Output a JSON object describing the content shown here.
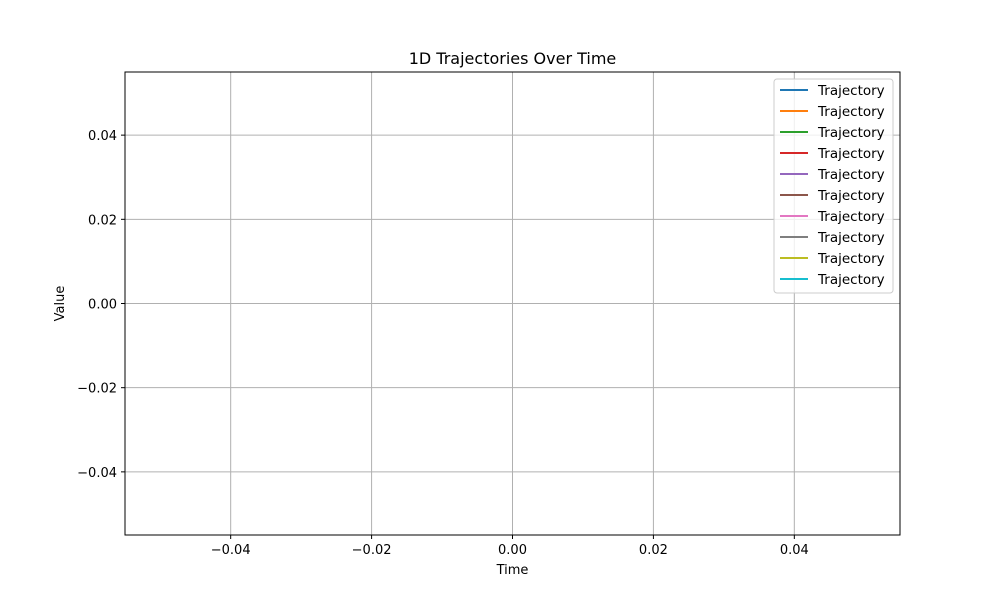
{
  "chart_data": {
    "type": "line",
    "title": "1D Trajectories Over Time",
    "xlabel": "Time",
    "ylabel": "Value",
    "xlim": [
      -0.055,
      0.055
    ],
    "ylim": [
      -0.055,
      0.055
    ],
    "x_ticks": [
      -0.04,
      -0.02,
      0.0,
      0.02,
      0.04
    ],
    "x_tick_labels": [
      "−0.04",
      "−0.02",
      "0.00",
      "0.02",
      "0.04"
    ],
    "y_ticks": [
      -0.04,
      -0.02,
      0.0,
      0.02,
      0.04
    ],
    "y_tick_labels": [
      "−0.04",
      "−0.02",
      "0.00",
      "0.02",
      "0.04"
    ],
    "grid": true,
    "legend_position": "top-right",
    "series": [
      {
        "name": "Trajectory",
        "color": "#1f77b4",
        "x": [],
        "y": []
      },
      {
        "name": "Trajectory",
        "color": "#ff7f0e",
        "x": [],
        "y": []
      },
      {
        "name": "Trajectory",
        "color": "#2ca02c",
        "x": [],
        "y": []
      },
      {
        "name": "Trajectory",
        "color": "#d62728",
        "x": [],
        "y": []
      },
      {
        "name": "Trajectory",
        "color": "#9467bd",
        "x": [],
        "y": []
      },
      {
        "name": "Trajectory",
        "color": "#8c564b",
        "x": [],
        "y": []
      },
      {
        "name": "Trajectory",
        "color": "#e377c2",
        "x": [],
        "y": []
      },
      {
        "name": "Trajectory",
        "color": "#7f7f7f",
        "x": [],
        "y": []
      },
      {
        "name": "Trajectory",
        "color": "#bcbd22",
        "x": [],
        "y": []
      },
      {
        "name": "Trajectory",
        "color": "#17becf",
        "x": [],
        "y": []
      }
    ]
  }
}
